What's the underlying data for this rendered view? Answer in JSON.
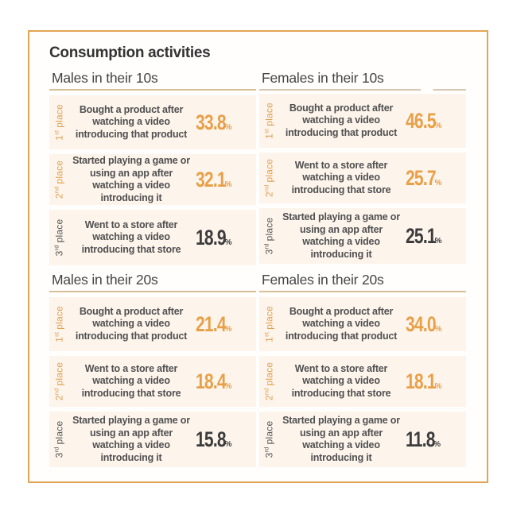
{
  "title": "Consumption activities",
  "colors": {
    "frame_border": "#e3a555",
    "card_bg": "#fdf4ec",
    "accent_gold": "#e8a048",
    "dark_text": "#3c3c3c",
    "underline": "#d8bf98"
  },
  "sections": [
    {
      "heading": "Males in their 10s",
      "items": [
        {
          "rank_num": "1",
          "rank_suffix": "st",
          "rank_word": "place",
          "lines": [
            "Bought a product after",
            "watching a video",
            "introducing that product"
          ],
          "value": "33.8",
          "unit": "%"
        },
        {
          "rank_num": "2",
          "rank_suffix": "nd",
          "rank_word": "place",
          "lines": [
            "Started playing a game or",
            "using an app after",
            "watching a video",
            "introducing it"
          ],
          "value": "32.1",
          "unit": "%"
        },
        {
          "rank_num": "3",
          "rank_suffix": "rd",
          "rank_word": "place",
          "lines": [
            "Went to a store after",
            "watching a video",
            "introducing that store"
          ],
          "value": "18.9",
          "unit": "%"
        }
      ]
    },
    {
      "heading": "Females in their 10s",
      "items": [
        {
          "rank_num": "1",
          "rank_suffix": "st",
          "rank_word": "place",
          "lines": [
            "Bought a product after",
            "watching a video",
            "introducing that product"
          ],
          "value": "46.5",
          "unit": "%"
        },
        {
          "rank_num": "2",
          "rank_suffix": "nd",
          "rank_word": "place",
          "lines": [
            "Went to a store after",
            "watching a video",
            "introducing that store"
          ],
          "value": "25.7",
          "unit": "%"
        },
        {
          "rank_num": "3",
          "rank_suffix": "rd",
          "rank_word": "place",
          "lines": [
            "Started playing a game or",
            "using an app after",
            "watching a video",
            "introducing it"
          ],
          "value": "25.1",
          "unit": "%"
        }
      ]
    },
    {
      "heading": "Males in their 20s",
      "items": [
        {
          "rank_num": "1",
          "rank_suffix": "st",
          "rank_word": "place",
          "lines": [
            "Bought a product after",
            "watching a video",
            "introducing that product"
          ],
          "value": "21.4",
          "unit": "%"
        },
        {
          "rank_num": "2",
          "rank_suffix": "nd",
          "rank_word": "place",
          "lines": [
            "Went to a store after",
            "watching a video",
            "introducing that store"
          ],
          "value": "18.4",
          "unit": "%"
        },
        {
          "rank_num": "3",
          "rank_suffix": "rd",
          "rank_word": "place",
          "lines": [
            "Started playing a game or",
            "using an app after",
            "watching a video",
            "introducing it"
          ],
          "value": "15.8",
          "unit": "%"
        }
      ]
    },
    {
      "heading": "Females in their 20s",
      "items": [
        {
          "rank_num": "1",
          "rank_suffix": "st",
          "rank_word": "place",
          "lines": [
            "Bought a product after",
            "watching a video",
            "introducing that product"
          ],
          "value": "34.0",
          "unit": "%"
        },
        {
          "rank_num": "2",
          "rank_suffix": "nd",
          "rank_word": "place",
          "lines": [
            "Went to a store after",
            "watching a video",
            "introducing that store"
          ],
          "value": "18.1",
          "unit": "%"
        },
        {
          "rank_num": "3",
          "rank_suffix": "rd",
          "rank_word": "place",
          "lines": [
            "Started playing a game or",
            "using an app after",
            "watching a video",
            "introducing it"
          ],
          "value": "11.8",
          "unit": "%"
        }
      ]
    }
  ]
}
